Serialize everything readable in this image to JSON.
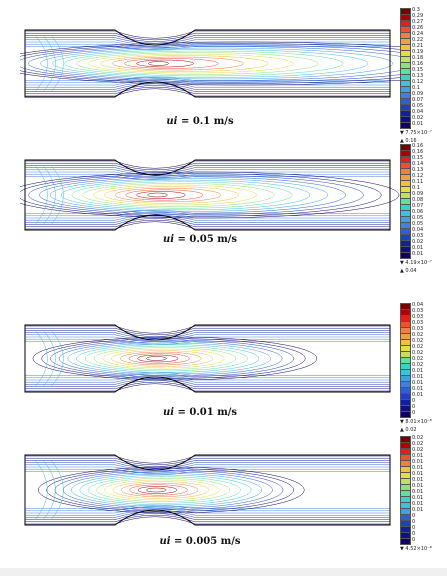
{
  "panels": [
    {
      "caption_prefix": "ui",
      "caption_value": " = 0.1 m/s",
      "legend": {
        "values": [
          "0.3",
          "0.29",
          "0.27",
          "0.26",
          "0.24",
          "0.22",
          "0.21",
          "0.19",
          "0.18",
          "0.16",
          "0.15",
          "0.13",
          "0.12",
          "0.1",
          "0.09",
          "0.07",
          "0.05",
          "0.04",
          "0.02",
          "0.01"
        ],
        "min": "▼ 7.75×10⁻⁷",
        "max": "▲ 0.16"
      }
    },
    {
      "caption_prefix": "ui",
      "caption_value": " = 0.05 m/s",
      "legend": {
        "values": [
          "0.16",
          "0.16",
          "0.15",
          "0.14",
          "0.13",
          "0.12",
          "0.11",
          "0.1",
          "0.09",
          "0.08",
          "0.07",
          "0.06",
          "0.05",
          "0.05",
          "0.04",
          "0.03",
          "0.02",
          "0.01",
          "0.01"
        ],
        "min": "▼ 4.19×10⁻⁷",
        "max": "▲ 0.04"
      }
    },
    {
      "caption_prefix": "ui",
      "caption_value": " = 0.01 m/s",
      "legend": {
        "values": [
          "0.04",
          "0.03",
          "0.03",
          "0.03",
          "0.03",
          "0.02",
          "0.02",
          "0.02",
          "0.02",
          "0.02",
          "0.02",
          "0.01",
          "0.01",
          "0.01",
          "0.01",
          "0.01",
          "0",
          "0",
          "0"
        ],
        "min": "▼ 8.01×10⁻⁸",
        "max": "▲ 0.02"
      }
    },
    {
      "caption_prefix": "ui",
      "caption_value": " = 0.005 m/s",
      "legend": {
        "values": [
          "0.02",
          "0.02",
          "0.02",
          "0.01",
          "0.01",
          "0.01",
          "0.01",
          "0.01",
          "0.01",
          "0.01",
          "0.01",
          "0.01",
          "0.01",
          "0",
          "0",
          "0",
          "0",
          "0"
        ],
        "min": "▼ 4.52×10⁻⁸",
        "max": ""
      }
    }
  ],
  "colors": {
    "scale": [
      "#7a0000",
      "#b00000",
      "#e02020",
      "#f05030",
      "#f08040",
      "#f0a040",
      "#f0c040",
      "#e0e040",
      "#c0e060",
      "#90e080",
      "#60e0a0",
      "#40d0c0",
      "#40c0e0",
      "#40a0e0",
      "#4080e0",
      "#3060d0",
      "#2040c0",
      "#1020a0",
      "#101080",
      "#100060"
    ],
    "wall": "#000000"
  }
}
